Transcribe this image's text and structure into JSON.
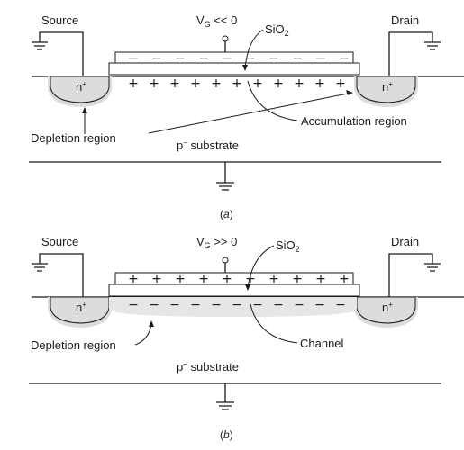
{
  "figure_a": {
    "source_label": "Source",
    "drain_label": "Drain",
    "gate_label": "V",
    "gate_sub": "G",
    "gate_cond": " << 0",
    "oxide_label": "SiO",
    "oxide_sub": "2",
    "n_label": "n",
    "n_sup": "+",
    "depletion_label": "Depletion region",
    "accumulation_label": "Accumulation region",
    "substrate_label": "p",
    "substrate_sup": "−",
    "substrate_rest": " substrate",
    "caption_left": "(",
    "caption_letter": "a",
    "caption_right": ")",
    "gate_charge": "−",
    "channel_charge": "+"
  },
  "figure_b": {
    "source_label": "Source",
    "drain_label": "Drain",
    "gate_label": "V",
    "gate_sub": "G",
    "gate_cond": " >> 0",
    "oxide_label": "SiO",
    "oxide_sub": "2",
    "n_label": "n",
    "n_sup": "+",
    "depletion_label": "Depletion region",
    "channel_label": "Channel",
    "substrate_label": "p",
    "substrate_sup": "−",
    "substrate_rest": " substrate",
    "caption_left": "(",
    "caption_letter": "b",
    "caption_right": ")",
    "gate_charge": "+",
    "channel_charge": "−"
  }
}
